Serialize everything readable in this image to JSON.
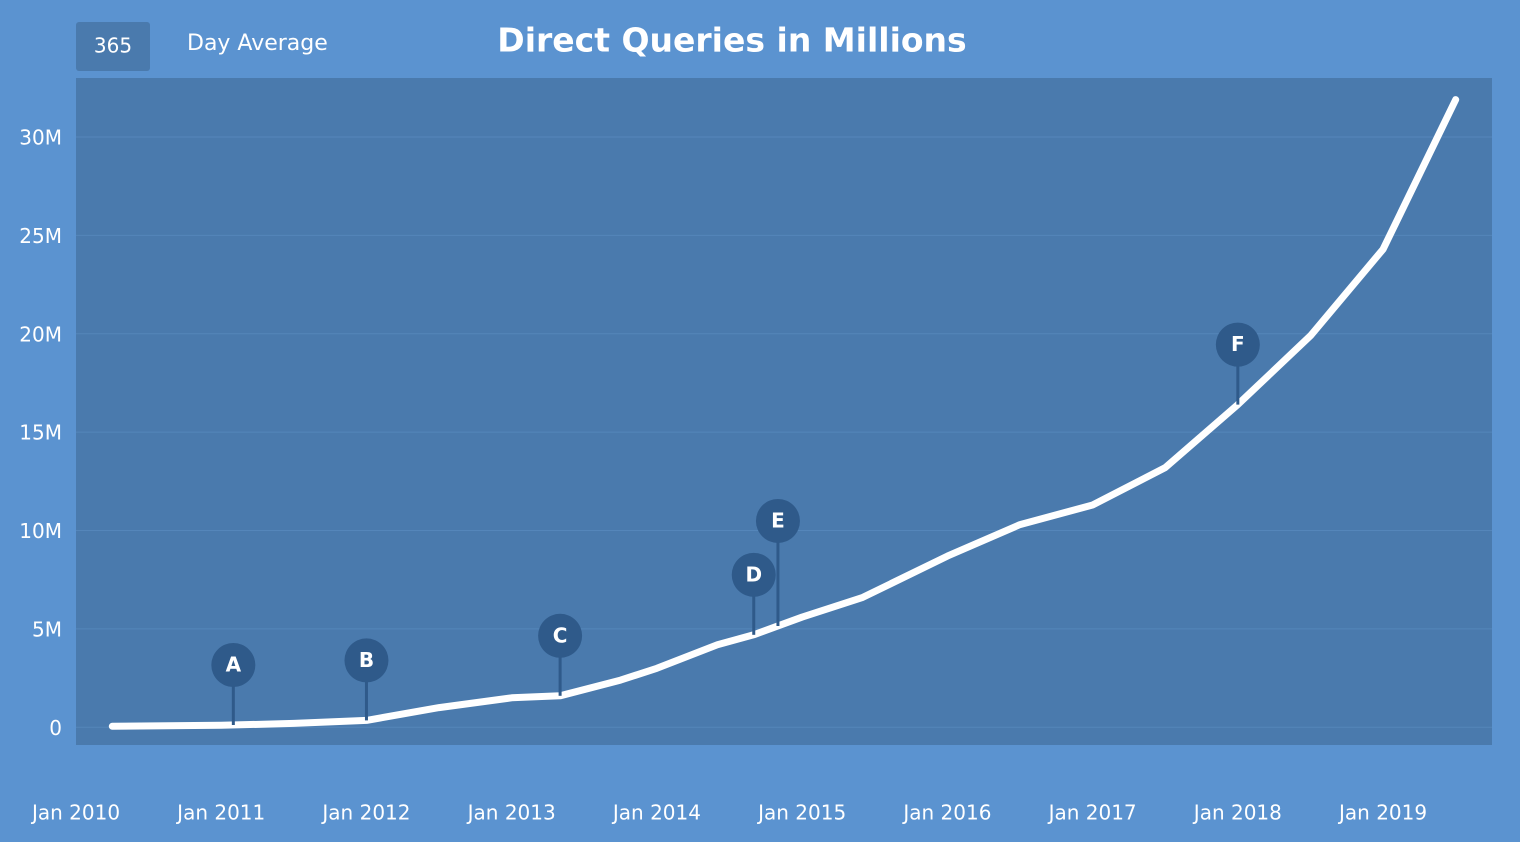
{
  "chart_data": {
    "type": "line",
    "title": "Direct Queries in Millions",
    "controls": {
      "period": "365",
      "period_label": "Day Average"
    },
    "x": [
      "2010-04",
      "2011-01",
      "2011-07",
      "2012-01",
      "2012-07",
      "2013-01",
      "2013-05",
      "2013-10",
      "2014-01",
      "2014-06",
      "2014-09",
      "2015-01",
      "2015-06",
      "2016-01",
      "2016-07",
      "2017-01",
      "2017-07",
      "2018-01",
      "2018-07",
      "2019-01",
      "2019-07"
    ],
    "series": [
      {
        "color": "#ffffff",
        "values": [
          0.05,
          0.1,
          0.2,
          0.35,
          1.0,
          1.5,
          1.6,
          2.4,
          3.0,
          4.2,
          4.7,
          5.6,
          6.6,
          8.7,
          10.3,
          11.3,
          13.2,
          16.4,
          19.9,
          24.3,
          31.9
        ]
      }
    ],
    "xlim": [
      "2010-01",
      "2019-10"
    ],
    "xticks": [
      {
        "value": "2010-01",
        "label": "Jan 2010"
      },
      {
        "value": "2011-01",
        "label": "Jan 2011"
      },
      {
        "value": "2012-01",
        "label": "Jan 2012"
      },
      {
        "value": "2013-01",
        "label": "Jan 2013"
      },
      {
        "value": "2014-01",
        "label": "Jan 2014"
      },
      {
        "value": "2015-01",
        "label": "Jan 2015"
      },
      {
        "value": "2016-01",
        "label": "Jan 2016"
      },
      {
        "value": "2017-01",
        "label": "Jan 2017"
      },
      {
        "value": "2018-01",
        "label": "Jan 2018"
      },
      {
        "value": "2019-01",
        "label": "Jan 2019"
      }
    ],
    "ylim": [
      -0.9,
      33
    ],
    "yticks": [
      0,
      {
        "value": 5,
        "label": "5M"
      },
      {
        "value": 10,
        "label": "10M"
      },
      {
        "value": 15,
        "label": "15M"
      },
      {
        "value": 20,
        "label": "20M"
      },
      {
        "value": 25,
        "label": "25M"
      },
      {
        "value": 30,
        "label": "30M"
      }
    ],
    "grid": true,
    "annotations": [
      {
        "label": "A",
        "x": "2011-02"
      },
      {
        "label": "B",
        "x": "2012-01"
      },
      {
        "label": "C",
        "x": "2013-05"
      },
      {
        "label": "D",
        "x": "2014-09"
      },
      {
        "label": "E",
        "x": "2014-11"
      },
      {
        "label": "F",
        "x": "2018-01"
      }
    ]
  }
}
